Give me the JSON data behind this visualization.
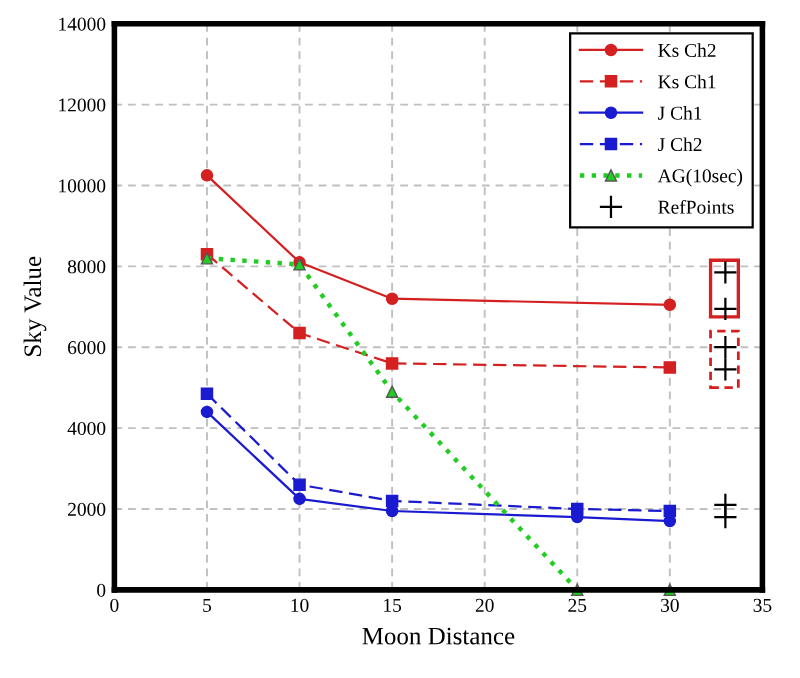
{
  "chart_data": {
    "type": "line",
    "xlabel": "Moon Distance",
    "ylabel": "Sky Value",
    "xlim": [
      0,
      35
    ],
    "xticks": [
      0,
      5,
      10,
      15,
      20,
      25,
      30,
      35
    ],
    "ylim": [
      0,
      14000
    ],
    "yticks": [
      0,
      2000,
      4000,
      6000,
      8000,
      10000,
      12000,
      14000
    ],
    "grid": true,
    "legend": "top right",
    "series": [
      {
        "name": "Ks Ch2",
        "color": "#d42020",
        "x": [
          5,
          10,
          15,
          30
        ],
        "values": [
          10250,
          8100,
          7200,
          7050
        ],
        "marker": "circle",
        "line_style": "solid"
      },
      {
        "name": "Ks Ch1",
        "color": "#d42020",
        "x": [
          5,
          10,
          15,
          30
        ],
        "values": [
          8300,
          6350,
          5600,
          5500
        ],
        "marker": "square",
        "line_style": "dashed"
      },
      {
        "name": "J Ch1",
        "color": "#1a1ad0",
        "x": [
          5,
          10,
          15,
          25,
          30
        ],
        "values": [
          4400,
          2250,
          1950,
          1800,
          1700
        ],
        "marker": "circle",
        "line_style": "solid"
      },
      {
        "name": "J Ch2",
        "color": "#1a1ad0",
        "x": [
          5,
          10,
          15,
          25,
          30
        ],
        "values": [
          4850,
          2600,
          2200,
          2000,
          1950
        ],
        "marker": "square",
        "line_style": "dashed"
      },
      {
        "name": "AG(10sec)",
        "color": "#22cc22",
        "x": [
          5,
          10,
          15,
          25,
          30
        ],
        "values": [
          8200,
          8050,
          4900,
          0,
          0
        ],
        "marker": "triangle",
        "line_style": "dotted"
      },
      {
        "name": "RefPoints",
        "color": "#000000",
        "type": "scatter",
        "x": [
          33,
          33,
          33,
          33,
          33,
          33
        ],
        "values": [
          7850,
          6950,
          6000,
          5450,
          2100,
          1800
        ],
        "marker": "cross"
      }
    ]
  }
}
